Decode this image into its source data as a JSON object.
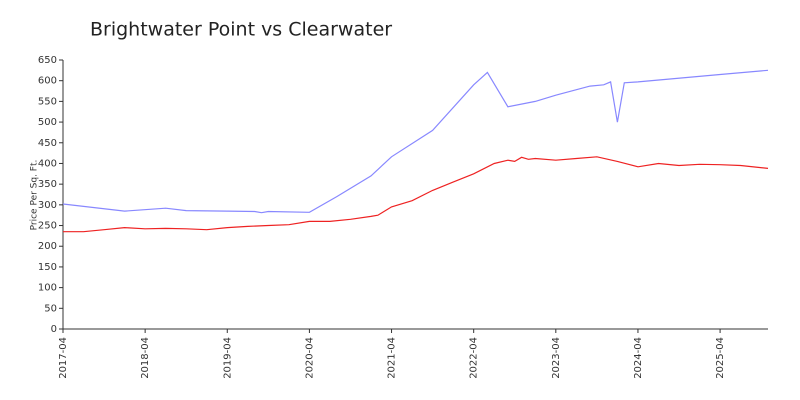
{
  "chart_data": {
    "type": "line",
    "title": "Brightwater Point vs Clearwater",
    "y_label": "Price Per Sq. Ft.",
    "xlim": [
      "2017-04",
      "2025-11"
    ],
    "xticks": [
      "2017-04",
      "2018-04",
      "2019-04",
      "2020-04",
      "2021-04",
      "2022-04",
      "2023-04",
      "2024-04",
      "2025-04"
    ],
    "ylim": [
      0,
      650
    ],
    "yticks": [
      0,
      50,
      100,
      150,
      200,
      250,
      300,
      350,
      400,
      450,
      500,
      550,
      600,
      650
    ],
    "series": [
      {
        "color": "#8888ff",
        "x": [
          "2017-04",
          "2018-01",
          "2018-07",
          "2018-10",
          "2019-04",
          "2019-08",
          "2019-09",
          "2019-10",
          "2020-04",
          "2020-08",
          "2021-01",
          "2021-04",
          "2021-10",
          "2022-04",
          "2022-06",
          "2022-09",
          "2023-01",
          "2023-04",
          "2023-09",
          "2023-11",
          "2023-12",
          "2024-01",
          "2024-02",
          "2024-04",
          "2025-04",
          "2025-11"
        ],
        "values": [
          302,
          285,
          292,
          286,
          285,
          284,
          281,
          284,
          282,
          320,
          370,
          416,
          480,
          590,
          620,
          537,
          550,
          565,
          587,
          590,
          597,
          500,
          595,
          597,
          615,
          625
        ]
      },
      {
        "color": "#ee2222",
        "x": [
          "2017-04",
          "2017-07",
          "2017-10",
          "2018-01",
          "2018-04",
          "2018-07",
          "2018-10",
          "2019-01",
          "2019-04",
          "2019-07",
          "2019-10",
          "2020-01",
          "2020-04",
          "2020-07",
          "2020-10",
          "2021-01",
          "2021-02",
          "2021-04",
          "2021-07",
          "2021-10",
          "2022-01",
          "2022-04",
          "2022-07",
          "2022-09",
          "2022-10",
          "2022-11",
          "2022-12",
          "2023-01",
          "2023-04",
          "2023-07",
          "2023-10",
          "2024-01",
          "2024-04",
          "2024-07",
          "2024-10",
          "2025-01",
          "2025-04",
          "2025-07",
          "2025-11"
        ],
        "values": [
          235,
          235,
          240,
          245,
          242,
          243,
          242,
          240,
          245,
          248,
          250,
          252,
          260,
          260,
          265,
          272,
          275,
          295,
          310,
          335,
          355,
          375,
          400,
          408,
          405,
          415,
          410,
          412,
          408,
          412,
          416,
          405,
          392,
          400,
          395,
          398,
          397,
          395,
          388
        ]
      }
    ]
  }
}
